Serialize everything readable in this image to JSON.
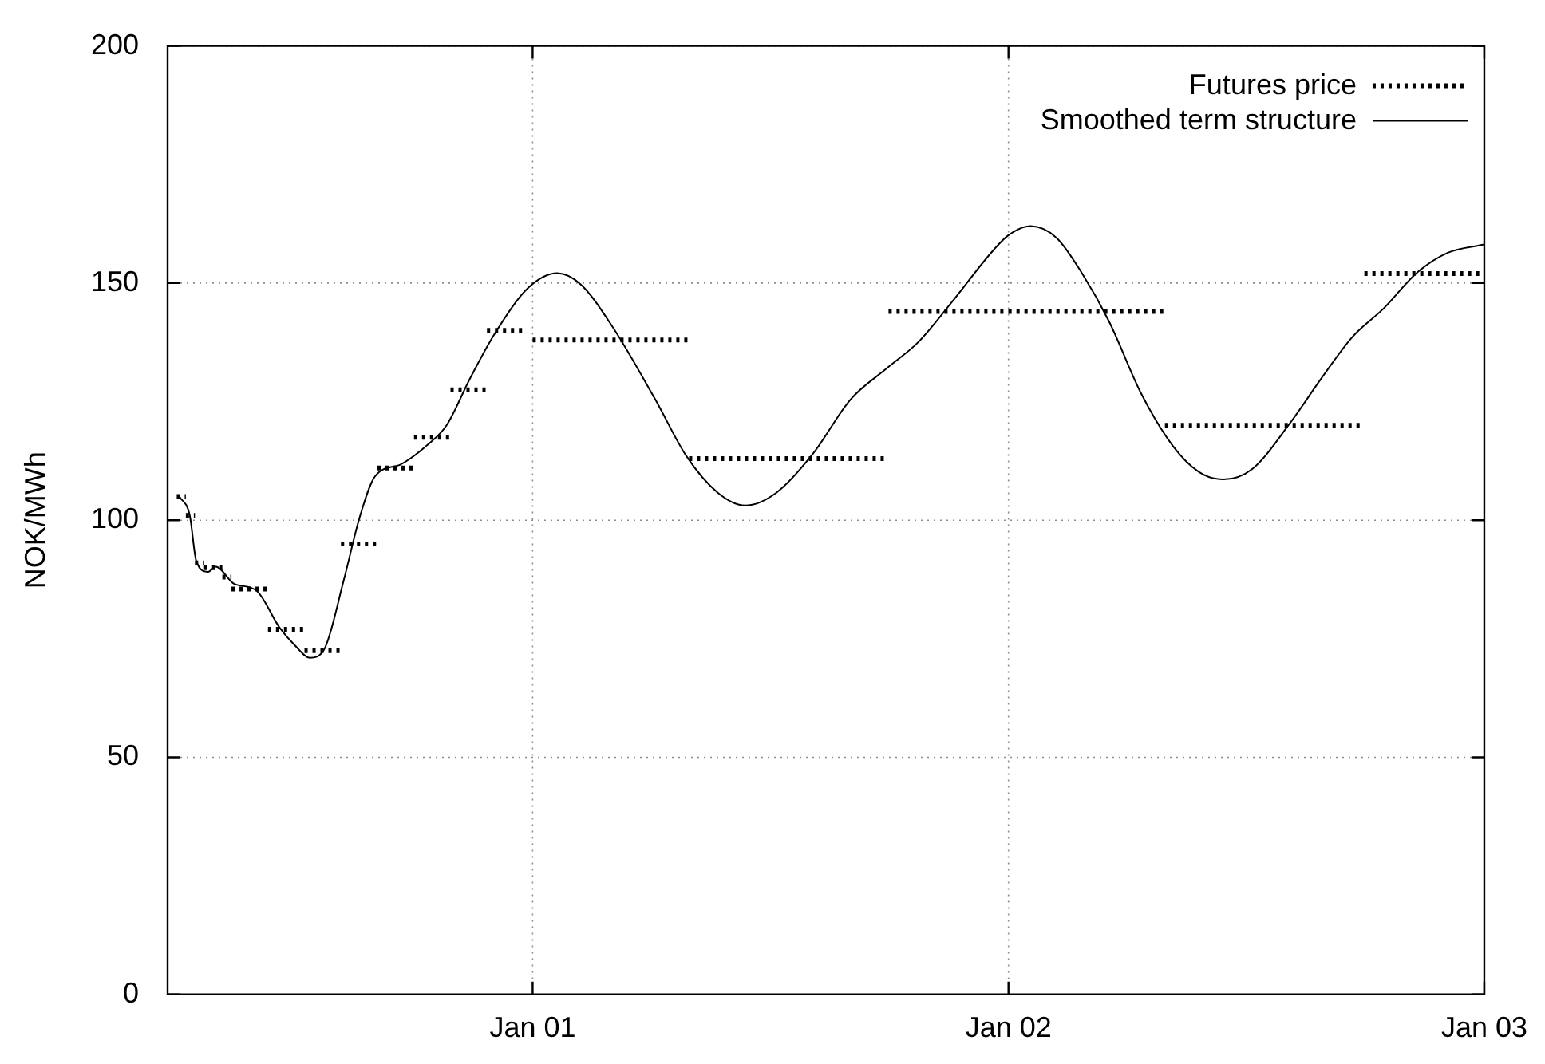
{
  "chart_data": {
    "type": "line",
    "ylabel": "NOK/MWh",
    "xlim": [
      "2000-03-27",
      "2003-01-01"
    ],
    "xticks": [
      {
        "value": "2001-01-01",
        "label": "Jan 01"
      },
      {
        "value": "2002-01-01",
        "label": "Jan 02"
      },
      {
        "value": "2003-01-01",
        "label": "Jan 03"
      }
    ],
    "ylim": [
      0,
      200
    ],
    "yticks": [
      0,
      50,
      100,
      150,
      200
    ],
    "grid": true,
    "legend": "top right",
    "series": [
      {
        "name": "Futures price",
        "color": "#000000",
        "line_style": "dotted",
        "x": [
          "2000-04-03",
          "2000-04-10"
        ],
        "values": [
          105,
          105
        ]
      },
      {
        "color": "#000000",
        "line_style": "dotted",
        "x": [
          "2000-04-10",
          "2000-04-17"
        ],
        "values": [
          101,
          101
        ]
      },
      {
        "color": "#000000",
        "line_style": "dotted",
        "x": [
          "2000-04-17",
          "2000-04-24"
        ],
        "values": [
          91,
          91
        ]
      },
      {
        "color": "#000000",
        "line_style": "dotted",
        "x": [
          "2000-04-24",
          "2000-05-08"
        ],
        "values": [
          90,
          90
        ]
      },
      {
        "color": "#000000",
        "line_style": "dotted",
        "x": [
          "2000-05-08",
          "2000-05-15"
        ],
        "values": [
          88,
          88
        ]
      },
      {
        "color": "#000000",
        "line_style": "dotted",
        "x": [
          "2000-05-15",
          "2000-06-12"
        ],
        "values": [
          85.5,
          85.5
        ]
      },
      {
        "color": "#000000",
        "line_style": "dotted",
        "x": [
          "2000-06-12",
          "2000-07-10"
        ],
        "values": [
          77,
          77
        ]
      },
      {
        "color": "#000000",
        "line_style": "dotted",
        "x": [
          "2000-07-10",
          "2000-08-07"
        ],
        "values": [
          72.5,
          72.5
        ]
      },
      {
        "color": "#000000",
        "line_style": "dotted",
        "x": [
          "2000-08-07",
          "2000-09-04"
        ],
        "values": [
          95,
          95
        ]
      },
      {
        "color": "#000000",
        "line_style": "dotted",
        "x": [
          "2000-09-04",
          "2000-10-02"
        ],
        "values": [
          111,
          111
        ]
      },
      {
        "color": "#000000",
        "line_style": "dotted",
        "x": [
          "2000-10-02",
          "2000-10-30"
        ],
        "values": [
          117.5,
          117.5
        ]
      },
      {
        "color": "#000000",
        "line_style": "dotted",
        "x": [
          "2000-10-30",
          "2000-11-27"
        ],
        "values": [
          127.5,
          127.5
        ]
      },
      {
        "color": "#000000",
        "line_style": "dotted",
        "x": [
          "2000-11-27",
          "2000-12-25"
        ],
        "values": [
          140,
          140
        ]
      },
      {
        "color": "#000000",
        "line_style": "dotted",
        "x": [
          "2001-01-01",
          "2001-05-01"
        ],
        "values": [
          138,
          138
        ]
      },
      {
        "color": "#000000",
        "line_style": "dotted",
        "x": [
          "2001-05-01",
          "2001-10-01"
        ],
        "values": [
          113,
          113
        ]
      },
      {
        "color": "#000000",
        "line_style": "dotted",
        "x": [
          "2001-10-01",
          "2002-01-01"
        ],
        "values": [
          144,
          144
        ]
      },
      {
        "color": "#000000",
        "line_style": "dotted",
        "x": [
          "2002-01-01",
          "2002-05-01"
        ],
        "values": [
          144,
          144
        ]
      },
      {
        "color": "#000000",
        "line_style": "dotted",
        "x": [
          "2002-05-01",
          "2002-10-01"
        ],
        "values": [
          120,
          120
        ]
      },
      {
        "color": "#000000",
        "line_style": "dotted",
        "x": [
          "2002-10-01",
          "2003-01-01"
        ],
        "values": [
          152,
          152
        ]
      },
      {
        "name": "Smoothed term structure",
        "color": "#000000",
        "line_style": "solid",
        "x": [
          "2000-04-05",
          "2000-04-13",
          "2000-04-18",
          "2000-04-27",
          "2000-05-03",
          "2000-05-17",
          "2000-06-03",
          "2000-06-21",
          "2000-07-03",
          "2000-07-14",
          "2000-07-25",
          "2000-08-09",
          "2000-08-21",
          "2000-09-02",
          "2000-09-22",
          "2000-10-12",
          "2000-10-27",
          "2000-11-14",
          "2000-12-04",
          "2000-12-29",
          "2001-01-20",
          "2001-02-07",
          "2001-03-03",
          "2001-04-05",
          "2001-04-29",
          "2001-05-23",
          "2001-06-13",
          "2001-07-07",
          "2001-08-04",
          "2001-09-02",
          "2001-09-30",
          "2001-10-24",
          "2001-11-18",
          "2001-12-20",
          "2002-01-01",
          "2002-01-18",
          "2002-02-07",
          "2002-02-27",
          "2002-03-19",
          "2002-04-13",
          "2002-05-07",
          "2002-05-27",
          "2002-06-15",
          "2002-07-07",
          "2002-08-04",
          "2002-08-29",
          "2002-09-22",
          "2002-10-16",
          "2002-11-10",
          "2002-12-04",
          "2002-12-31"
        ],
        "values": [
          105,
          101,
          91.4,
          89.1,
          90.2,
          86.6,
          85.2,
          77.3,
          73.5,
          71,
          72.7,
          87.2,
          100.3,
          109.2,
          111.8,
          115.8,
          120,
          129.9,
          139.8,
          149.1,
          152.1,
          149.7,
          140.9,
          125.5,
          113.5,
          105.8,
          103.1,
          105.8,
          114,
          125.5,
          132.1,
          137.6,
          145.8,
          156.8,
          160.1,
          162,
          159.5,
          151.8,
          142,
          126.6,
          115.7,
          110.2,
          108.6,
          110.8,
          120.1,
          129.9,
          138.7,
          144.7,
          152.1,
          156.4,
          158.1
        ]
      }
    ]
  }
}
